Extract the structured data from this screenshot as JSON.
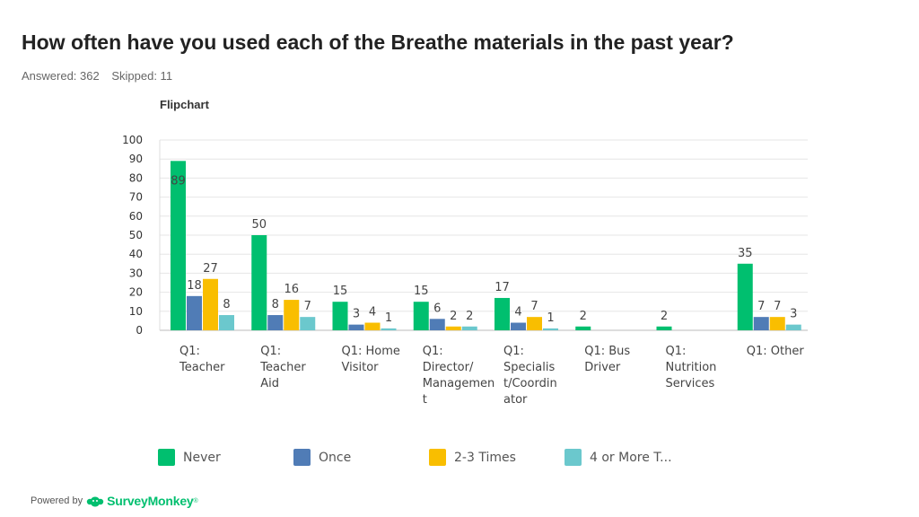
{
  "page": {
    "title": "How often have you used each of the Breathe materials in the past year?",
    "answered": "Answered: 362",
    "skipped": "Skipped: 11"
  },
  "footer": {
    "powered_by": "Powered by",
    "brand": "SurveyMonkey",
    "brand_mark": "®"
  },
  "chart_data": {
    "type": "bar",
    "title": "Flipchart",
    "xlabel": "",
    "ylabel": "",
    "ylim": [
      0,
      100
    ],
    "yticks": [
      0,
      10,
      20,
      30,
      40,
      50,
      60,
      70,
      80,
      90,
      100
    ],
    "grid": true,
    "legend_position": "bottom",
    "categories": [
      [
        "Q1:",
        "Teacher"
      ],
      [
        "Q1:",
        "Teacher",
        "Aid"
      ],
      [
        "Q1: Home",
        "Visitor"
      ],
      [
        "Q1:",
        "Director/",
        "Managemen",
        "t"
      ],
      [
        "Q1:",
        "Specialis",
        "t/Coordin",
        "ator"
      ],
      [
        "Q1: Bus",
        "Driver"
      ],
      [
        "Q1:",
        "Nutrition",
        "Services"
      ],
      [
        "Q1: Other"
      ]
    ],
    "series": [
      {
        "name": "Never",
        "color": "#00bf6f",
        "values": [
          89,
          50,
          15,
          15,
          17,
          2,
          2,
          35
        ]
      },
      {
        "name": "Once",
        "color": "#507cb6",
        "values": [
          18,
          8,
          3,
          6,
          4,
          0,
          0,
          7
        ]
      },
      {
        "name": "2-3 Times",
        "color": "#f9be00",
        "values": [
          27,
          16,
          4,
          2,
          7,
          0,
          0,
          7
        ]
      },
      {
        "name": "4 or More T...",
        "color": "#6bc8cd",
        "values": [
          8,
          7,
          1,
          2,
          1,
          0,
          0,
          3
        ]
      }
    ]
  }
}
